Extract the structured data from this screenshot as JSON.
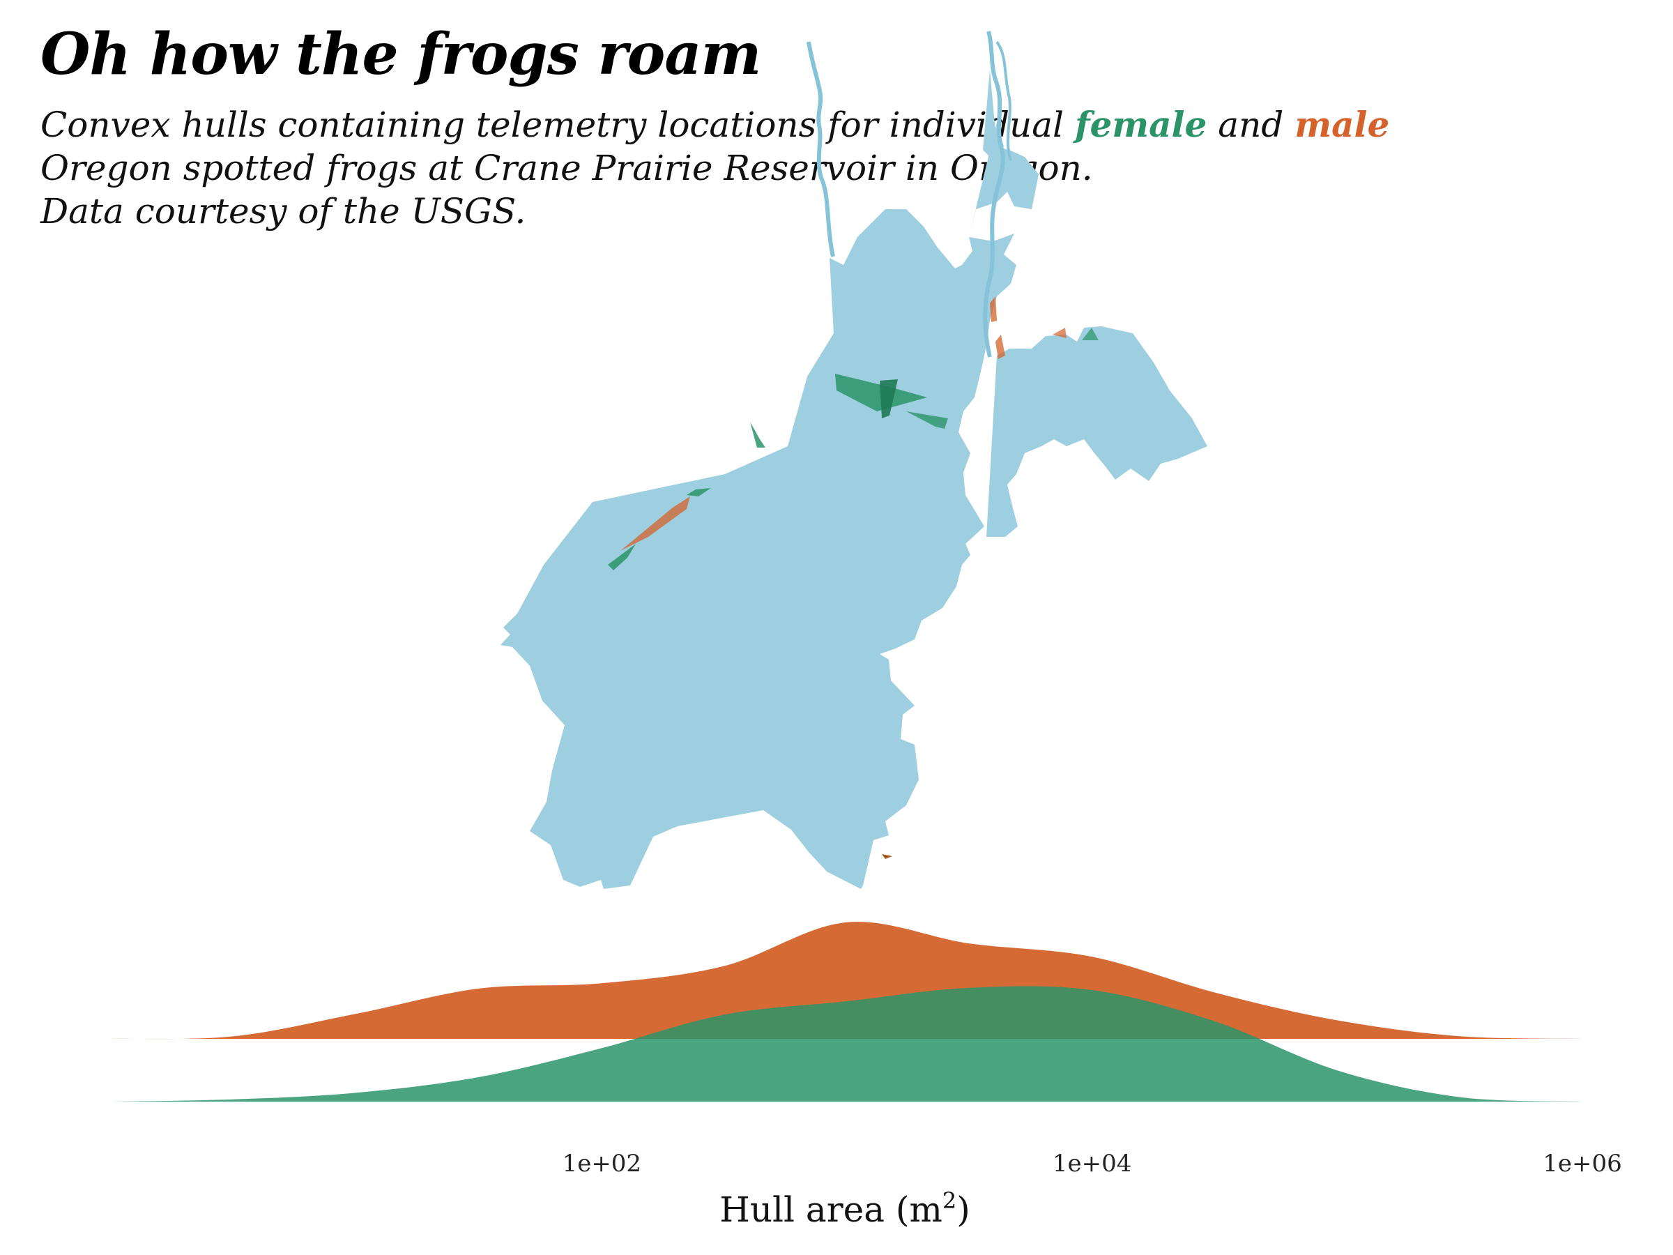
{
  "header": {
    "title": "Oh how the frogs roam",
    "subtitle_part1": "Convex hulls containing telemetry locations for individual",
    "female_word": "female",
    "and_word": "and",
    "male_word": "male",
    "subtitle_line2": "Oregon spotted frogs at Crane Prairie Reservoir in Oregon.",
    "subtitle_line3": "Data courtesy of the USGS."
  },
  "colors": {
    "female": "#2a9468",
    "male": "#d4622a",
    "water": "#9ecfe0"
  },
  "chart_data": {
    "type": "area",
    "subtype": "ridgeline-density",
    "xlabel": "Hull area (m²)",
    "xlabel_base": "Hull area (m",
    "xlabel_sup": "2",
    "xlabel_close": ")",
    "x_scale": "log10",
    "x_range": [
      1,
      1000000
    ],
    "x_ticks": [
      100,
      10000,
      1000000
    ],
    "x_tick_labels": [
      "1e+02",
      "1e+04",
      "1e+06"
    ],
    "series": [
      {
        "name": "male",
        "x": [
          1,
          3.16,
          10,
          31.6,
          100,
          316,
          1000,
          3162,
          10000,
          31623,
          100000,
          316228,
          1000000
        ],
        "density": [
          0.0,
          0.02,
          0.19,
          0.38,
          0.42,
          0.55,
          0.88,
          0.72,
          0.62,
          0.35,
          0.14,
          0.02,
          0.0
        ]
      },
      {
        "name": "female",
        "x": [
          1,
          3.16,
          10,
          31.6,
          100,
          316,
          1000,
          3162,
          10000,
          31623,
          100000,
          316228,
          1000000
        ],
        "density": [
          0.0,
          0.02,
          0.08,
          0.22,
          0.48,
          0.78,
          0.9,
          1.02,
          1.0,
          0.72,
          0.28,
          0.04,
          0.0
        ]
      }
    ]
  }
}
